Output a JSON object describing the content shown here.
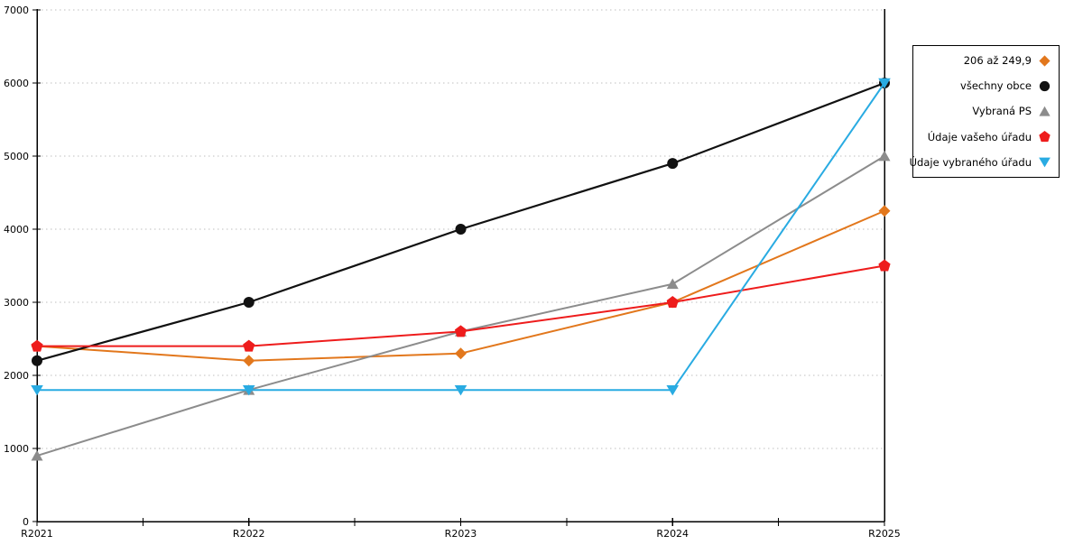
{
  "chart_data": {
    "type": "line",
    "title": "",
    "xlabel": "",
    "ylabel": "",
    "categories": [
      "R2021",
      "R2022",
      "R2023",
      "R2024",
      "R2025"
    ],
    "series": [
      {
        "name": "206 až 249,9",
        "marker": "diamond",
        "color": "#E2771C",
        "values": [
          2400,
          2200,
          2300,
          3000,
          4250
        ]
      },
      {
        "name": "všechny obce",
        "marker": "circle",
        "color": "#111111",
        "values": [
          2200,
          3000,
          4000,
          4900,
          6000
        ]
      },
      {
        "name": "Vybraná PS",
        "marker": "triangle-up",
        "color": "#8C8C8C",
        "values": [
          900,
          1800,
          2600,
          3250,
          5000
        ]
      },
      {
        "name": "Údaje vašeho úřadu",
        "marker": "pentagon",
        "color": "#EE1C1C",
        "values": [
          2400,
          2400,
          2600,
          3000,
          3500
        ]
      },
      {
        "name": "Údaje vybraného úřadu",
        "marker": "triangle-down",
        "color": "#29ABE2",
        "values": [
          1800,
          1800,
          1800,
          1800,
          6000
        ]
      }
    ],
    "ylim": [
      0,
      7000
    ],
    "ytick_step": 1000,
    "yticks": [
      "0",
      "1000",
      "2000",
      "3000",
      "4000",
      "5000",
      "6000",
      "7000"
    ],
    "grid": "horizontal-dotted",
    "legend_position": "right-outside"
  },
  "colors": {
    "background": "#FFFFFF",
    "axis": "#000000",
    "gridline": "#BFBFBF",
    "tick_label": "#000000"
  }
}
